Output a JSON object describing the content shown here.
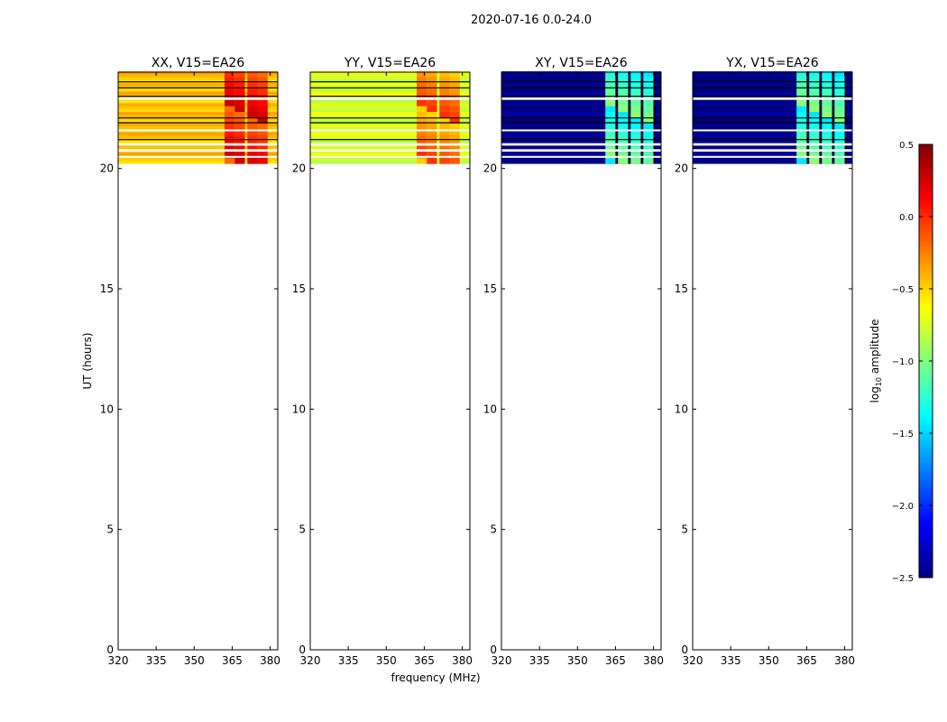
{
  "figure": {
    "suptitle": "2020-07-16 0.0-24.0",
    "shared_xlabel": "frequency (MHz)",
    "shared_ylabel": "UT (hours)"
  },
  "chart_data": [
    {
      "type": "heatmap",
      "title": "XX, V15=EA26",
      "xlim": [
        320,
        383
      ],
      "ylim": [
        0,
        24
      ],
      "xticks": [
        320,
        335,
        350,
        365,
        380
      ],
      "yticks": [
        0,
        5,
        10,
        15,
        20
      ],
      "data_time_range": [
        20.2,
        24.0
      ],
      "base_level": -0.45,
      "hot_bands_mhz": [
        [
          362,
          366
        ],
        [
          366,
          370
        ],
        [
          371,
          375
        ],
        [
          375,
          379
        ]
      ],
      "hot_level": 0.05
    },
    {
      "type": "heatmap",
      "title": "YY, V15=EA26",
      "xlim": [
        320,
        383
      ],
      "ylim": [
        0,
        24
      ],
      "xticks": [
        320,
        335,
        350,
        365,
        380
      ],
      "yticks": [
        0,
        5,
        10,
        15,
        20
      ],
      "data_time_range": [
        20.2,
        24.0
      ],
      "base_level": -0.75,
      "hot_bands_mhz": [
        [
          362,
          366
        ],
        [
          366,
          370
        ],
        [
          371,
          375
        ],
        [
          375,
          379
        ]
      ],
      "hot_level": -0.25
    },
    {
      "type": "heatmap",
      "title": "XY, V15=EA26",
      "xlim": [
        320,
        383
      ],
      "ylim": [
        0,
        24
      ],
      "xticks": [
        320,
        335,
        350,
        365,
        380
      ],
      "yticks": [
        0,
        5,
        10,
        15,
        20
      ],
      "data_time_range": [
        20.2,
        24.0
      ],
      "base_level": -2.5,
      "hot_bands_mhz": [
        [
          361,
          365
        ],
        [
          366,
          370
        ],
        [
          371,
          375
        ],
        [
          376,
          380
        ]
      ],
      "hot_level": -1.2
    },
    {
      "type": "heatmap",
      "title": "YX, V15=EA26",
      "xlim": [
        320,
        383
      ],
      "ylim": [
        0,
        24
      ],
      "xticks": [
        320,
        335,
        350,
        365,
        380
      ],
      "yticks": [
        0,
        5,
        10,
        15,
        20
      ],
      "data_time_range": [
        20.2,
        24.0
      ],
      "base_level": -2.5,
      "hot_bands_mhz": [
        [
          361,
          365
        ],
        [
          366,
          370
        ],
        [
          371,
          375
        ],
        [
          376,
          380
        ]
      ],
      "hot_level": -1.2
    }
  ],
  "colorbar": {
    "label": "log10 amplitude",
    "label_base": "log",
    "label_sub": "10",
    "label_rest": " amplitude",
    "range": [
      -2.5,
      0.5
    ],
    "ticks": [
      0.5,
      0.0,
      -0.5,
      -1.0,
      -1.5,
      -2.0,
      -2.5
    ],
    "tick_labels": [
      "0.5",
      "0.0",
      "−0.5",
      "−1.0",
      "−1.5",
      "−2.0",
      "−2.5"
    ],
    "colormap": "jet"
  },
  "colors": {
    "axis": "#000000",
    "gap": "#ffffff",
    "flag_line": "#000000"
  }
}
